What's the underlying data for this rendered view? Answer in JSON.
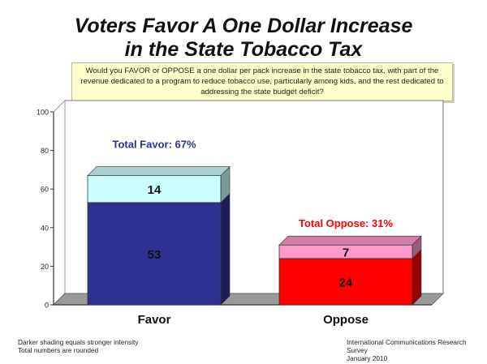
{
  "title_line1": "Voters Favor A One Dollar Increase",
  "title_line2": "in the State Tobacco Tax",
  "question": "Would you FAVOR or OPPOSE a one dollar per pack increase in the state tobacco tax, with part of the revenue dedicated to a program to reduce tobacco use, particularly among kids, and the rest dedicated to addressing the state budget deficit?",
  "footer": {
    "note1": "Darker shading equals stronger intensity",
    "note2": "Total numbers are rounded",
    "source1": "International Communications Research Survey",
    "source2": "January 2010"
  },
  "chart_data": {
    "type": "bar",
    "stacked": true,
    "categories": [
      "Favor",
      "Oppose"
    ],
    "series": [
      {
        "values": [
          53,
          24
        ],
        "colors": [
          "#2e3192",
          "#ff0000"
        ]
      },
      {
        "values": [
          14,
          7
        ],
        "colors": [
          "#ccffff",
          "#ff99cc"
        ]
      }
    ],
    "totals": [
      {
        "label": "Total Favor: 67%",
        "color": "#2e3192"
      },
      {
        "label": "Total Oppose: 31%",
        "color": "#ff0000"
      }
    ],
    "ylim": [
      0,
      100
    ],
    "yticks": [
      0,
      20,
      40,
      60,
      80,
      100
    ],
    "grid": false
  }
}
